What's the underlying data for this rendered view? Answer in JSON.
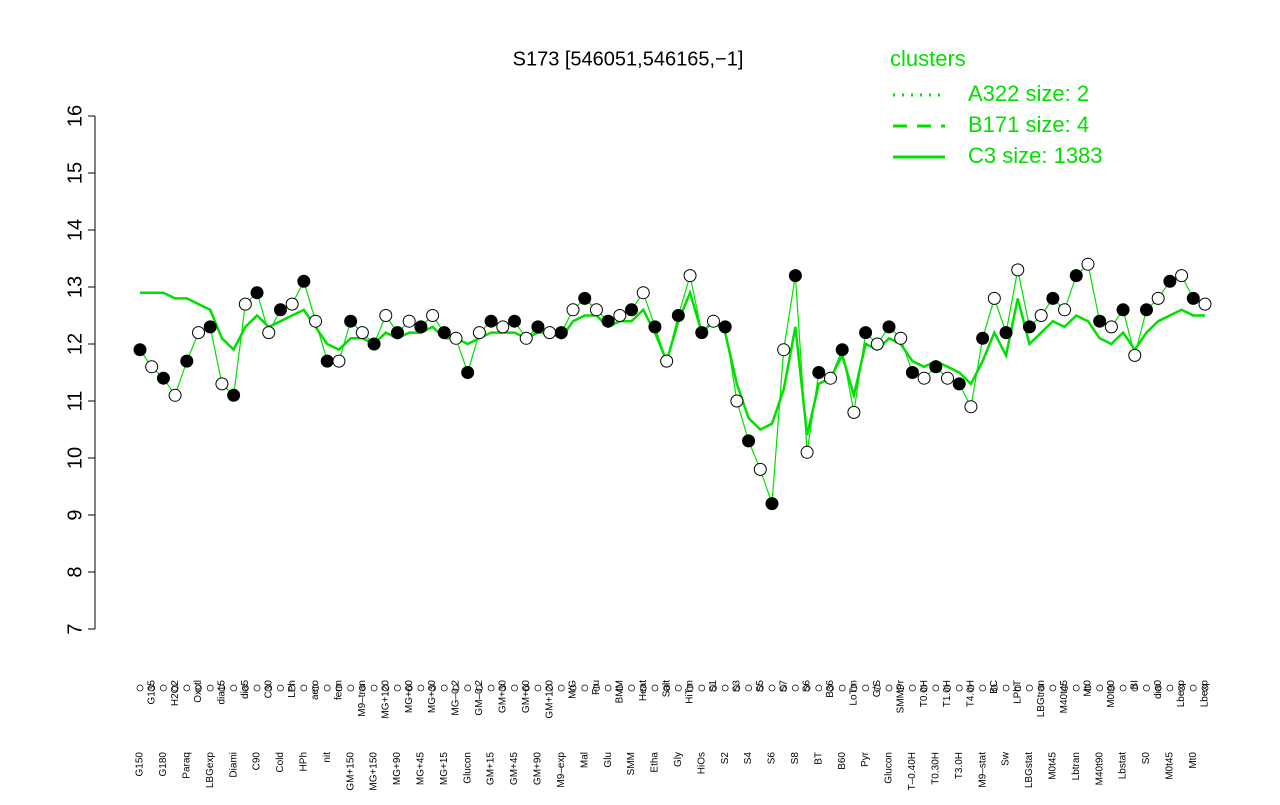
{
  "chart_data": {
    "type": "line",
    "title": "S173 [546051,546165,−1]",
    "categories": [
      "G150",
      "G135",
      "G180",
      "H2O2",
      "Paraq",
      "Oxctl",
      "LBGexp",
      "dia15",
      "Diami",
      "dia5",
      "C90",
      "C30",
      "Cold",
      "LPh",
      "HPh",
      "aero",
      "nit",
      "ferm",
      "GM+150",
      "M9–tran",
      "MG+150",
      "MG+120",
      "MG+90",
      "MG+60",
      "MG+45",
      "MG+30",
      "MG+15",
      "MG–0.2",
      "Glucon",
      "GM–0.2",
      "GM+15",
      "GM+30",
      "GM+45",
      "GM+60",
      "GM+90",
      "GM+120",
      "M9–exp",
      "M/G",
      "Mal",
      "Fru",
      "Glu",
      "BMM",
      "SMM",
      "Heat",
      "Etha",
      "Salt",
      "Gly",
      "HiTm",
      "HiOs",
      "S1",
      "S2",
      "S3",
      "S4",
      "S5",
      "S6",
      "S7",
      "S8",
      "S6",
      "BT",
      "B36",
      "B60",
      "LoTm",
      "Pyr",
      "G/S",
      "Glucon",
      "SMMPr",
      "T–0.40H",
      "T0.0H",
      "T0.30H",
      "T1.0H",
      "T3.0H",
      "T4.0H",
      "M9–stat",
      "BC",
      "Sw",
      "LPhT",
      "LBGstat",
      "LBGtran",
      "M0t45",
      "M40t45",
      "Lbtran",
      "Mt0",
      "M40t90",
      "M0t90",
      "Lbstat",
      "BI",
      "S0",
      "dia0",
      "M0t45",
      "Lbexp",
      "Mt0",
      "Lbexp"
    ],
    "values": [
      11.9,
      11.6,
      11.4,
      11.1,
      11.7,
      12.2,
      12.3,
      11.3,
      11.1,
      12.7,
      12.9,
      12.2,
      12.6,
      12.7,
      13.1,
      12.4,
      11.7,
      11.7,
      12.4,
      12.2,
      12.0,
      12.5,
      12.2,
      12.4,
      12.3,
      12.5,
      12.2,
      12.1,
      11.5,
      12.2,
      12.4,
      12.3,
      12.4,
      12.1,
      12.3,
      12.2,
      12.2,
      12.6,
      12.8,
      12.6,
      12.4,
      12.5,
      12.6,
      12.9,
      12.3,
      11.7,
      12.5,
      13.2,
      12.2,
      12.4,
      12.3,
      11.0,
      10.3,
      9.8,
      9.2,
      11.9,
      13.2,
      10.1,
      11.5,
      11.4,
      11.9,
      10.8,
      12.2,
      12.0,
      12.3,
      12.1,
      11.5,
      11.4,
      11.6,
      11.4,
      11.3,
      10.9,
      12.1,
      12.8,
      12.2,
      13.3,
      12.3,
      12.5,
      12.8,
      12.6,
      13.2,
      13.4,
      12.4,
      12.3,
      12.6,
      11.8,
      12.6,
      12.8,
      13.1,
      13.2,
      12.8,
      12.7
    ],
    "line_values": [
      12.9,
      12.9,
      12.9,
      12.8,
      12.8,
      12.7,
      12.6,
      12.1,
      11.9,
      12.3,
      12.5,
      12.3,
      12.4,
      12.5,
      12.6,
      12.3,
      12.0,
      11.9,
      12.1,
      12.1,
      12.0,
      12.2,
      12.1,
      12.2,
      12.2,
      12.3,
      12.1,
      12.1,
      12.0,
      12.1,
      12.2,
      12.2,
      12.2,
      12.1,
      12.2,
      12.2,
      12.1,
      12.4,
      12.5,
      12.5,
      12.3,
      12.4,
      12.4,
      12.6,
      12.2,
      11.7,
      12.4,
      12.9,
      12.2,
      12.4,
      12.2,
      11.3,
      10.7,
      10.5,
      10.6,
      11.2,
      12.3,
      10.4,
      11.3,
      11.4,
      11.8,
      11.1,
      12.0,
      11.9,
      12.1,
      12.0,
      11.7,
      11.6,
      11.7,
      11.6,
      11.5,
      11.3,
      11.7,
      12.2,
      11.8,
      12.8,
      12.0,
      12.2,
      12.4,
      12.3,
      12.5,
      12.4,
      12.1,
      12.0,
      12.2,
      11.9,
      12.2,
      12.4,
      12.5,
      12.6,
      12.5,
      12.5
    ],
    "line_color": "#00e000",
    "point_fills": [
      "#000000",
      "#ffffff"
    ],
    "ylim": [
      7,
      16
    ],
    "yticks": [
      7,
      8,
      9,
      10,
      11,
      12,
      13,
      14,
      15,
      16
    ],
    "legend": {
      "title": "clusters",
      "corner": "top-right",
      "color": "#00e000",
      "entries": [
        {
          "label": "A322 size: 2",
          "style": "dotted"
        },
        {
          "label": "B171 size: 4",
          "style": "dashed"
        },
        {
          "label": "C3 size: 1383",
          "style": "solid"
        }
      ]
    }
  }
}
